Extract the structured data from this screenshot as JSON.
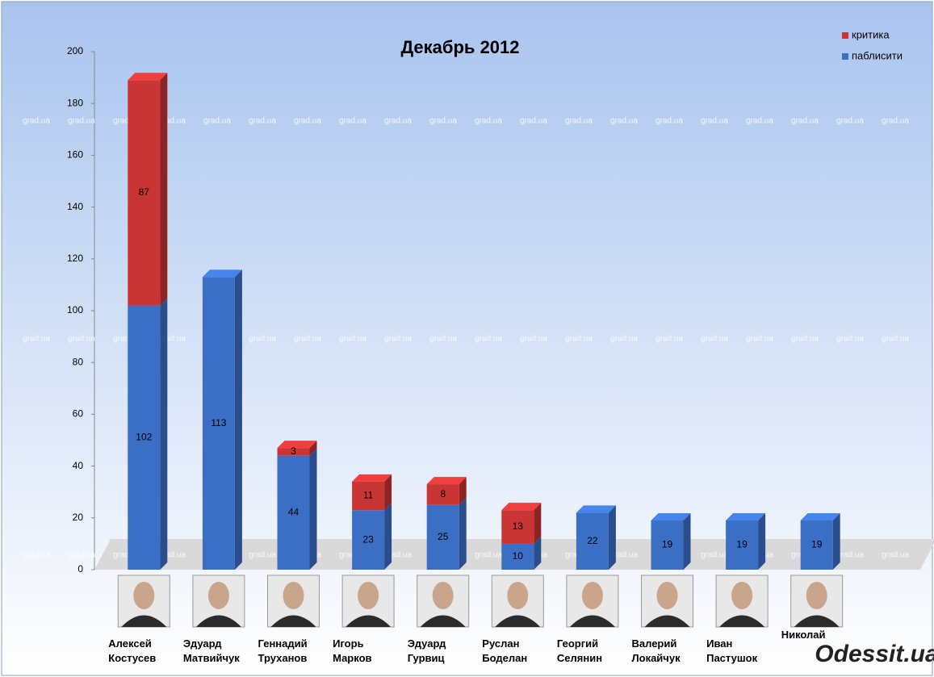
{
  "chart_data": {
    "type": "stacked-bar-3d",
    "title": "Декабрь 2012",
    "categories": [
      "Алексей Костусев",
      "Эдуард Матвийчук",
      "Геннадий Труханов",
      "Игорь Марков",
      "Эдуард Гурвиц",
      "Руслан Боделан",
      "Георгий Селянин",
      "Валерий Локайчук",
      "Иван Пастушок",
      "Николай"
    ],
    "series": [
      {
        "name": "паблисити",
        "color": "#3b6fc6",
        "values": [
          102,
          113,
          44,
          23,
          25,
          10,
          22,
          19,
          19,
          19
        ]
      },
      {
        "name": "критика",
        "color": "#c93434",
        "values": [
          87,
          null,
          3,
          11,
          8,
          13,
          null,
          null,
          null,
          null
        ]
      }
    ],
    "ylim": [
      0,
      200
    ],
    "yticks": [
      0,
      20,
      40,
      60,
      80,
      100,
      120,
      140,
      160,
      180,
      200
    ],
    "legend": "top-right",
    "watermark": "grad.ua",
    "logo": "Odessit.ua"
  }
}
